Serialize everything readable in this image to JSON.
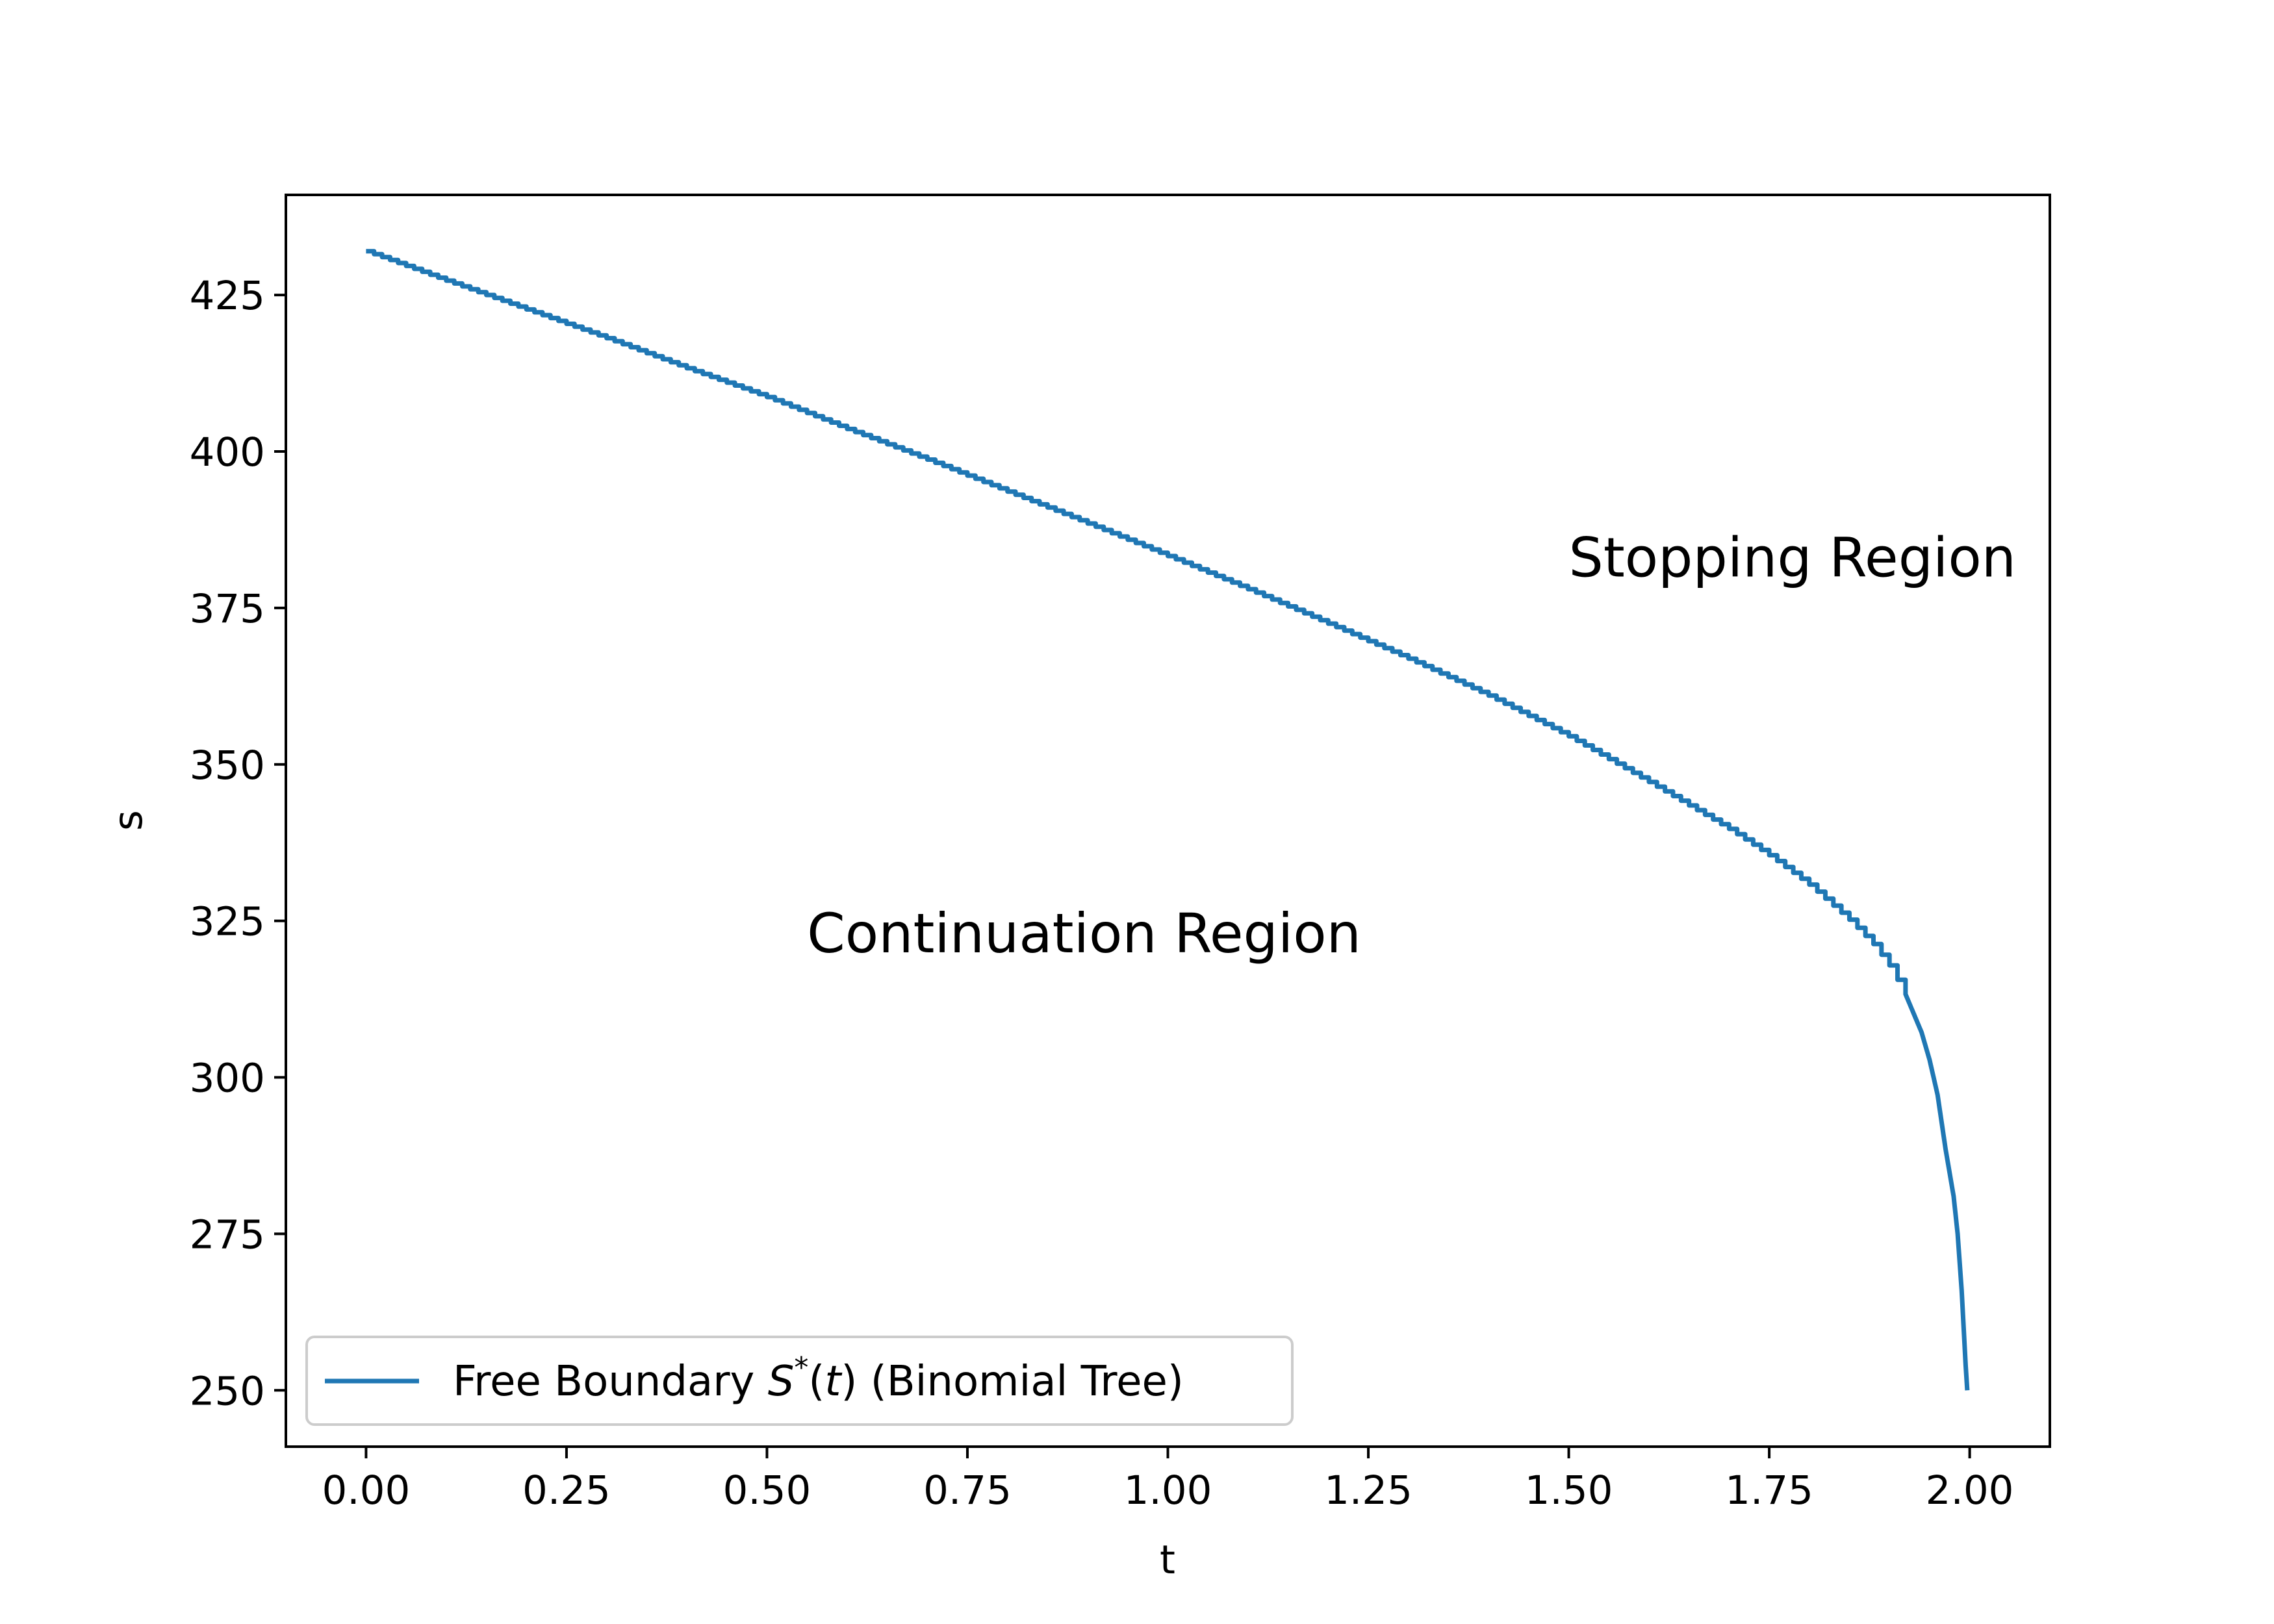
{
  "chart_data": {
    "type": "line",
    "title": "",
    "xlabel": "t",
    "ylabel": "s",
    "xlim": [
      -0.1,
      2.1
    ],
    "ylim": [
      241,
      441
    ],
    "xticks": [
      0.0,
      0.25,
      0.5,
      0.75,
      1.0,
      1.25,
      1.5,
      1.75,
      2.0
    ],
    "xtick_labels": [
      "0.00",
      "0.25",
      "0.50",
      "0.75",
      "1.00",
      "1.25",
      "1.50",
      "1.75",
      "2.00"
    ],
    "yticks": [
      250,
      275,
      300,
      325,
      350,
      375,
      400,
      425
    ],
    "ytick_labels": [
      "250",
      "275",
      "300",
      "325",
      "350",
      "375",
      "400",
      "425"
    ],
    "grid": false,
    "legend": {
      "placement": "lower-left",
      "entries": [
        {
          "prefix": "Free Boundary ",
          "math_S": "S",
          "math_sup": "*",
          "math_paren_open": "(",
          "math_t": "t",
          "math_paren_close": ")",
          "suffix": " (Binomial Tree)"
        }
      ]
    },
    "annotations": [
      {
        "text": "Stopping Region",
        "x": 1.5,
        "y": 380
      },
      {
        "text": "Continuation Region",
        "x": 0.55,
        "y": 320
      }
    ],
    "series": [
      {
        "name": "Free Boundary S*(t) (Binomial Tree)",
        "color": "#1f77b4",
        "step": 0.01,
        "x": [
          0.0,
          0.1,
          0.2,
          0.3,
          0.4,
          0.5,
          0.6,
          0.7,
          0.8,
          0.9,
          1.0,
          1.1,
          1.2,
          1.3,
          1.4,
          1.5,
          1.6,
          1.7,
          1.75,
          1.8,
          1.85,
          1.88,
          1.9,
          1.92,
          1.94,
          1.95,
          1.96,
          1.97,
          1.98,
          1.985,
          1.99,
          1.995,
          1.997
        ],
        "y": [
          432,
          427.3,
          422.7,
          418.1,
          413.3,
          408.7,
          403.6,
          398.7,
          393.6,
          388.5,
          383.3,
          378.0,
          372.5,
          366.9,
          361.0,
          354.5,
          347.2,
          339.7,
          335.5,
          330.8,
          325.2,
          321.3,
          317.9,
          313.3,
          307.2,
          302.8,
          297.2,
          288.5,
          281.0,
          275.0,
          266.0,
          254.0,
          250.0
        ]
      }
    ]
  }
}
